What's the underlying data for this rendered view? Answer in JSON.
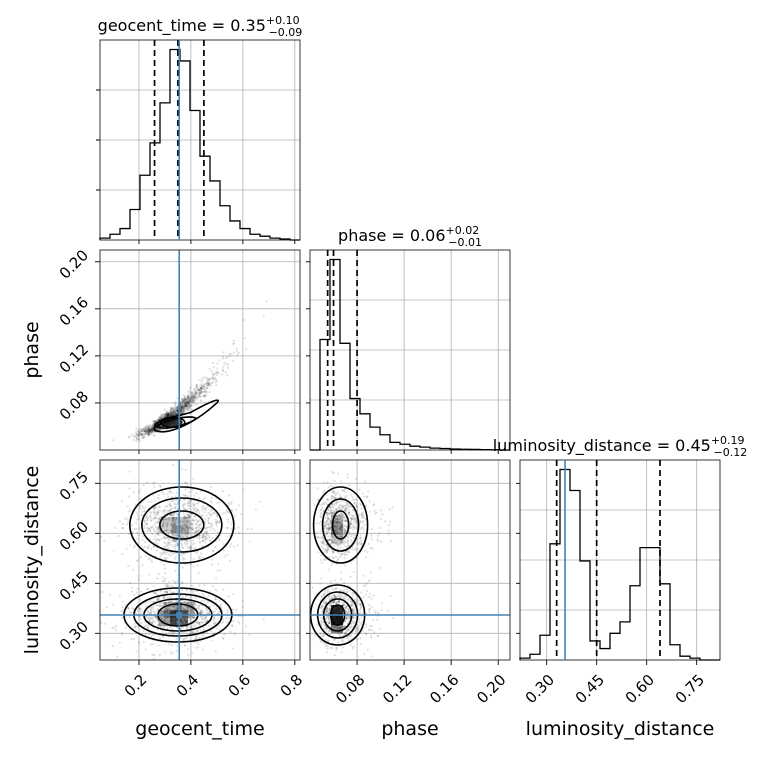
{
  "chart_data": {
    "type": "corner",
    "parameters": [
      {
        "name": "geocent_time",
        "label": "geocent_time",
        "title": "geocent_time = 0.35",
        "median": 0.35,
        "err_plus": "+0.10",
        "err_minus": "−0.09",
        "quantiles": [
          0.26,
          0.35,
          0.45
        ],
        "truth": 0.355,
        "range": [
          0.05,
          0.82
        ],
        "ticks": [
          0.2,
          0.4,
          0.6,
          0.8
        ],
        "tick_labels": [
          "0.2",
          "0.4",
          "0.6",
          "0.8"
        ],
        "hist_bin_edges": [
          0.05,
          0.0885,
          0.127,
          0.1655,
          0.204,
          0.2425,
          0.281,
          0.3195,
          0.358,
          0.3965,
          0.435,
          0.4735,
          0.512,
          0.5505,
          0.589,
          0.6275,
          0.666,
          0.7045,
          0.743,
          0.7815,
          0.82
        ],
        "hist_counts": [
          1,
          3,
          6,
          16,
          34,
          51,
          72,
          100,
          94,
          68,
          44,
          31,
          18,
          10,
          6,
          3,
          2,
          1,
          0.5,
          0
        ]
      },
      {
        "name": "phase",
        "label": "phase",
        "title": "phase = 0.06",
        "median": 0.06,
        "err_plus": "+0.02",
        "err_minus": "−0.01",
        "quantiles": [
          0.055,
          0.06,
          0.08
        ],
        "truth": null,
        "range": [
          0.04,
          0.21
        ],
        "ticks": [
          0.08,
          0.12,
          0.16,
          0.2
        ],
        "tick_labels": [
          "0.08",
          "0.12",
          "0.16",
          "0.20"
        ],
        "hist_bin_edges": [
          0.04,
          0.0485,
          0.057,
          0.0655,
          0.074,
          0.0825,
          0.091,
          0.0995,
          0.108,
          0.1165,
          0.125,
          0.1335,
          0.142,
          0.1505,
          0.159,
          0.1675,
          0.176,
          0.1845,
          0.193,
          0.2015,
          0.21
        ],
        "hist_counts": [
          0,
          58,
          100,
          56,
          27,
          19,
          12,
          8,
          4,
          3,
          2,
          1.5,
          1,
          0.8,
          0.5,
          0.4,
          0.3,
          0.2,
          0.1,
          0
        ]
      },
      {
        "name": "luminosity_distance",
        "label": "luminosity_distance",
        "title": "luminosity_distance = 0.45",
        "median": 0.45,
        "err_plus": "+0.19",
        "err_minus": "−0.12",
        "quantiles": [
          0.33,
          0.45,
          0.64
        ],
        "truth": 0.355,
        "range": [
          0.22,
          0.82
        ],
        "ticks": [
          0.3,
          0.45,
          0.6,
          0.75
        ],
        "tick_labels": [
          "0.30",
          "0.45",
          "0.60",
          "0.75"
        ],
        "hist_bin_edges": [
          0.22,
          0.25,
          0.28,
          0.31,
          0.34,
          0.37,
          0.4,
          0.43,
          0.46,
          0.49,
          0.52,
          0.55,
          0.58,
          0.61,
          0.64,
          0.67,
          0.7,
          0.73,
          0.76,
          0.79,
          0.82
        ],
        "hist_counts": [
          1,
          3,
          13,
          61,
          100,
          89,
          52,
          10,
          6,
          14,
          20,
          39,
          59,
          59,
          40,
          8,
          2,
          1,
          0,
          0
        ]
      }
    ],
    "pairs": [
      {
        "x": "geocent_time",
        "y": "phase"
      },
      {
        "x": "geocent_time",
        "y": "luminosity_distance"
      },
      {
        "x": "phase",
        "y": "luminosity_distance"
      }
    ],
    "truth_color": "#4682b4",
    "hist_color": "#000000",
    "grid": true,
    "legend": "none"
  }
}
